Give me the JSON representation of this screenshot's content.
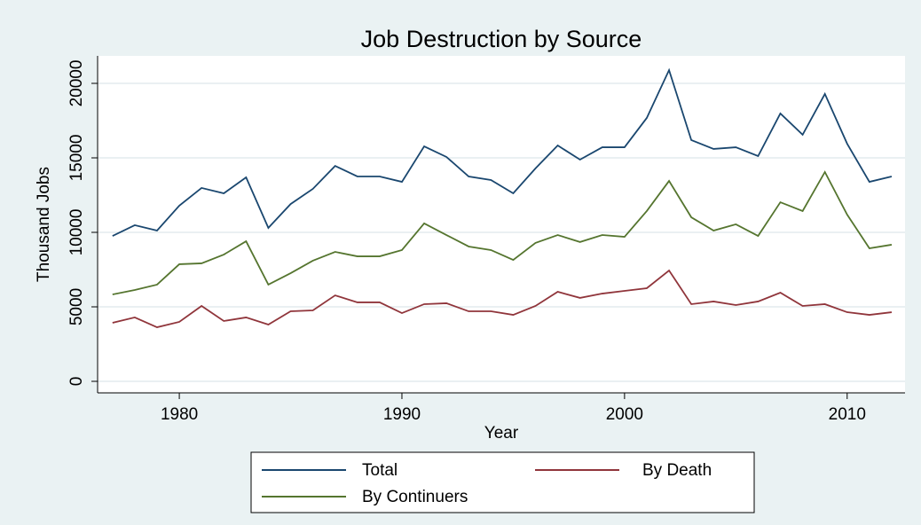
{
  "chart_data": {
    "type": "line",
    "title": "Job Destruction by Source",
    "xlabel": "Year",
    "ylabel": "Thousand Jobs",
    "x": [
      1977,
      1978,
      1979,
      1980,
      1981,
      1982,
      1983,
      1984,
      1985,
      1986,
      1987,
      1988,
      1989,
      1990,
      1991,
      1992,
      1993,
      1994,
      1995,
      1996,
      1997,
      1998,
      1999,
      2000,
      2001,
      2002,
      2003,
      2004,
      2005,
      2006,
      2007,
      2008,
      2009,
      2010,
      2011,
      2012
    ],
    "series": [
      {
        "name": "Total",
        "color": "#1a476f",
        "values": [
          9760,
          10480,
          10120,
          11790,
          12980,
          12620,
          13690,
          10300,
          11900,
          12920,
          14460,
          13750,
          13750,
          13390,
          15770,
          15060,
          13750,
          13510,
          12620,
          14290,
          15830,
          14880,
          15710,
          15710,
          17680,
          20890,
          16190,
          15600,
          15710,
          15120,
          17980,
          16550,
          19290,
          15950,
          13390,
          13750
        ]
      },
      {
        "name": "By Death",
        "color": "#90353b",
        "values": [
          3930,
          4290,
          3630,
          3990,
          5060,
          4050,
          4290,
          3810,
          4700,
          4760,
          5770,
          5300,
          5300,
          4580,
          5180,
          5240,
          4700,
          4700,
          4460,
          5060,
          6010,
          5600,
          5890,
          6070,
          6250,
          7440,
          5180,
          5360,
          5120,
          5360,
          5950,
          5060,
          5180,
          4640,
          4460,
          4640
        ]
      },
      {
        "name": "By Continuers",
        "color": "#55752f",
        "values": [
          5830,
          6130,
          6490,
          7860,
          7920,
          8510,
          9400,
          6490,
          7260,
          8100,
          8690,
          8390,
          8390,
          8810,
          10600,
          9820,
          9050,
          8810,
          8150,
          9290,
          9820,
          9350,
          9820,
          9700,
          11430,
          13450,
          11010,
          10120,
          10540,
          9760,
          12020,
          11430,
          14050,
          11190,
          8930,
          9170
        ]
      }
    ],
    "xlim": [
      1976.33,
      2012.6
    ],
    "xticks": [
      1980,
      1990,
      2000,
      2010
    ],
    "ylim": [
      -774,
      21845
    ],
    "yticks": [
      0,
      5000,
      10000,
      15000,
      20000
    ],
    "grid": true
  }
}
